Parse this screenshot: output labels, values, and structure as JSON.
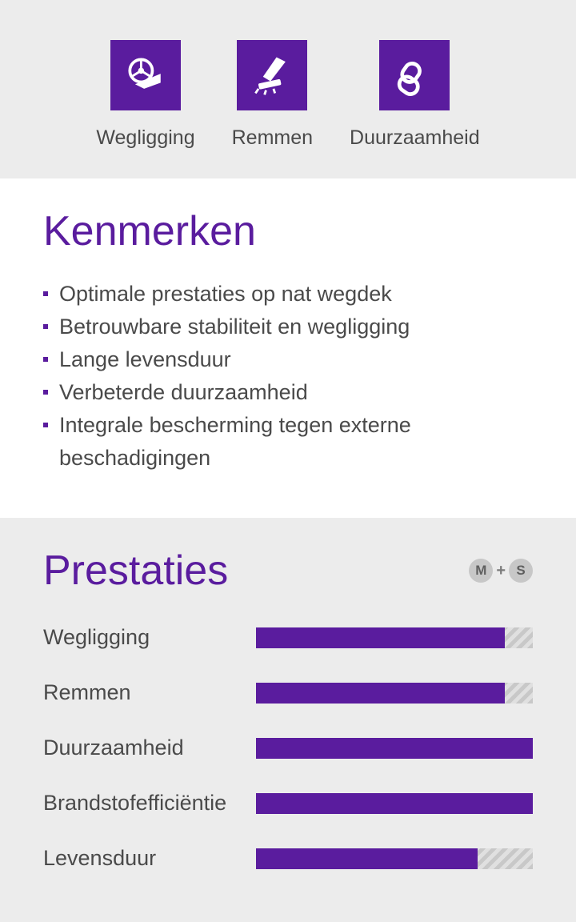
{
  "colors": {
    "accent": "#5a1c9e",
    "text": "#4a4a4a",
    "bg_light": "#ececec",
    "bg_white": "#ffffff",
    "bar_hatch_dark": "#c8c8c8",
    "bar_hatch_light": "#e0e0e0",
    "badge_bg": "#c7c7c7",
    "badge_text": "#5f5f5f"
  },
  "top_icons": [
    {
      "name": "wegligging",
      "label": "Wegligging"
    },
    {
      "name": "remmen",
      "label": "Remmen"
    },
    {
      "name": "duurzaamheid",
      "label": "Duurzaamheid"
    }
  ],
  "features": {
    "title": "Kenmerken",
    "items": [
      "Optimale prestaties op nat wegdek",
      "Betrouwbare stabiliteit en wegligging",
      "Lange levensduur",
      "Verbeterde duurzaamheid",
      "Integrale bescherming tegen externe beschadigingen"
    ]
  },
  "performance": {
    "title": "Prestaties",
    "badge": {
      "left": "M",
      "plus": "+",
      "right": "S"
    },
    "metrics": [
      {
        "label": "Wegligging",
        "value": 90
      },
      {
        "label": "Remmen",
        "value": 90
      },
      {
        "label": "Duurzaamheid",
        "value": 100
      },
      {
        "label": "Brandstofefficiëntie",
        "value": 100
      },
      {
        "label": "Levensduur",
        "value": 80
      }
    ],
    "bar_color": "#5a1c9e"
  }
}
